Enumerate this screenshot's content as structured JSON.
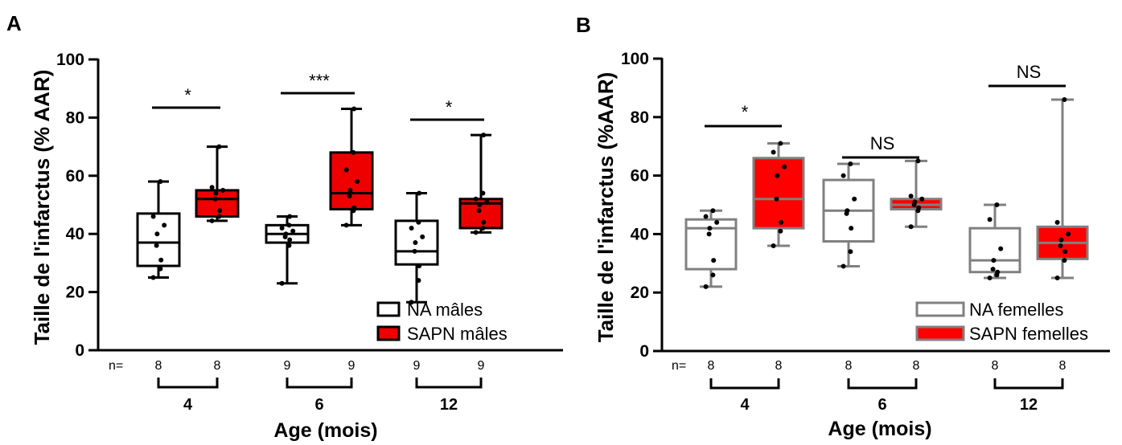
{
  "chart_data": [
    {
      "panel": "A",
      "type": "box",
      "ylabel": "Taille de l'infarctus (% AAR)",
      "xlabel": "Age (mois)",
      "ylim": [
        0,
        100
      ],
      "yticks": [
        0,
        20,
        40,
        60,
        80,
        100
      ],
      "n_prefix": "n=",
      "groups": [
        {
          "label": "4",
          "boxes": [
            {
              "series": 0,
              "n": "8",
              "min": 25,
              "q1": 29,
              "median": 37,
              "q3": 47,
              "max": 58,
              "points": [
                25,
                28,
                31,
                36,
                40,
                43,
                46,
                58
              ]
            },
            {
              "series": 1,
              "n": "8",
              "min": 44.5,
              "q1": 46,
              "median": 52,
              "q3": 55,
              "max": 70,
              "points": [
                44.5,
                46,
                48,
                52,
                54,
                55,
                56,
                70
              ]
            }
          ],
          "significance": "*"
        },
        {
          "label": "6",
          "boxes": [
            {
              "series": 0,
              "n": "9",
              "min": 23,
              "q1": 37,
              "median": 40,
              "q3": 43,
              "max": 46,
              "points": [
                23,
                36,
                38,
                39,
                40,
                41,
                42,
                43,
                46
              ]
            },
            {
              "series": 1,
              "n": "9",
              "min": 43,
              "q1": 48.5,
              "median": 54,
              "q3": 68,
              "max": 83,
              "points": [
                43,
                48,
                49,
                53,
                55,
                58,
                62,
                68,
                83
              ]
            }
          ],
          "significance": "***"
        },
        {
          "label": "12",
          "boxes": [
            {
              "series": 0,
              "n": "9",
              "min": 16.5,
              "q1": 29.5,
              "median": 34,
              "q3": 44.5,
              "max": 54,
              "points": [
                16.5,
                24,
                29,
                34,
                37,
                39,
                42,
                44,
                54
              ]
            },
            {
              "series": 1,
              "n": "9",
              "min": 40.5,
              "q1": 42,
              "median": 50.5,
              "q3": 52,
              "max": 74,
              "points": [
                40.5,
                42,
                44,
                48,
                50,
                51,
                52,
                54,
                74
              ]
            }
          ],
          "significance": "*"
        }
      ],
      "series": [
        {
          "name": "NA mâles",
          "fill": "#ffffff",
          "stroke": "#000000"
        },
        {
          "name": "SAPN mâles",
          "fill": "#ee0000",
          "stroke": "#000000"
        }
      ],
      "legend": "bottom-right"
    },
    {
      "panel": "B",
      "type": "box",
      "ylabel": "Taille de l'infarctus (%AAR)",
      "xlabel": "Age (mois)",
      "ylim": [
        0,
        100
      ],
      "yticks": [
        0,
        20,
        40,
        60,
        80,
        100
      ],
      "n_prefix": "n=",
      "groups": [
        {
          "label": "4",
          "boxes": [
            {
              "series": 0,
              "n": "8",
              "min": 22,
              "q1": 28,
              "median": 42,
              "q3": 45,
              "max": 48,
              "points": [
                22,
                26,
                31,
                40,
                42,
                44,
                46,
                48
              ]
            },
            {
              "series": 1,
              "n": "8",
              "min": 36,
              "q1": 42,
              "median": 52,
              "q3": 66,
              "max": 71,
              "points": [
                36,
                41,
                44,
                52,
                60,
                63,
                68,
                71
              ]
            }
          ],
          "significance": "*"
        },
        {
          "label": "6",
          "boxes": [
            {
              "series": 0,
              "n": "8",
              "min": 29,
              "q1": 37.5,
              "median": 48,
              "q3": 58.5,
              "max": 64,
              "points": [
                29,
                34,
                42,
                47,
                48,
                52,
                60,
                64
              ]
            },
            {
              "series": 1,
              "n": "8",
              "min": 42.5,
              "q1": 48.5,
              "median": 50,
              "q3": 52,
              "max": 65,
              "points": [
                42.5,
                48,
                49,
                50,
                51,
                52,
                53,
                65
              ]
            }
          ],
          "significance": "NS"
        },
        {
          "label": "12",
          "boxes": [
            {
              "series": 0,
              "n": "8",
              "min": 25,
              "q1": 27,
              "median": 31,
              "q3": 42,
              "max": 50,
              "points": [
                25,
                26,
                27,
                28,
                31,
                35,
                45,
                50
              ]
            },
            {
              "series": 1,
              "n": "8",
              "min": 25,
              "q1": 31.5,
              "median": 37,
              "q3": 42.5,
              "max": 86,
              "points": [
                25,
                31,
                34,
                36,
                38,
                40,
                44,
                86
              ]
            }
          ],
          "significance": "NS"
        }
      ],
      "series": [
        {
          "name": "NA femelles",
          "fill": "#ffffff",
          "stroke": "#808080"
        },
        {
          "name": "SAPN femelles",
          "fill": "#ff0000",
          "stroke": "#808080"
        }
      ],
      "legend": "bottom-right"
    }
  ]
}
